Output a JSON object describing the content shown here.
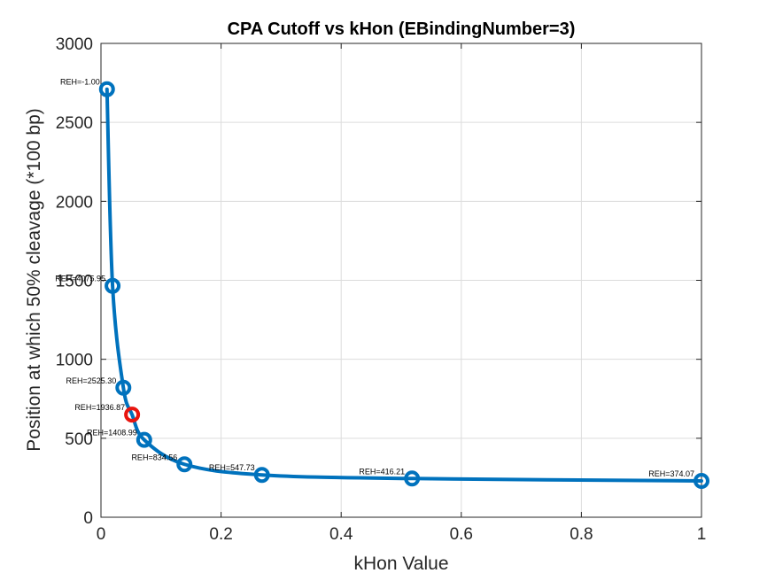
{
  "chart_data": {
    "type": "line",
    "title": "CPA Cutoff vs kHon (EBindingNumber=3)",
    "xlabel": "kHon Value",
    "ylabel": "Position at which 50% cleavage (*100 bp)",
    "xlim": [
      0,
      1
    ],
    "ylim": [
      0,
      3000
    ],
    "x_ticks": [
      0,
      0.2,
      0.4,
      0.6,
      0.8,
      1
    ],
    "x_tick_labels": [
      "0",
      "0.2",
      "0.4",
      "0.6",
      "0.8",
      "1"
    ],
    "y_ticks": [
      0,
      500,
      1000,
      1500,
      2000,
      2500,
      3000
    ],
    "y_tick_labels": [
      "0",
      "500",
      "1000",
      "1500",
      "2000",
      "2500",
      "3000"
    ],
    "grid": true,
    "line_color": "#0072BD",
    "highlight_color": "#E8150F",
    "series": [
      {
        "x": [
          0.01,
          0.0193,
          0.0373,
          0.0518,
          0.072,
          0.139,
          0.268,
          0.518,
          1.0
        ],
        "y": [
          2710,
          1465,
          820,
          650,
          490,
          335,
          268,
          245,
          230
        ],
        "labels": [
          "REH=-1.00",
          "REH=4075.95",
          "REH=2525.30",
          "REH=1936.87",
          "REH=1408.99",
          "REH=834.56",
          "REH=547.73",
          "REH=416.21",
          "REH=374.07"
        ],
        "highlight_index": 3
      }
    ]
  }
}
